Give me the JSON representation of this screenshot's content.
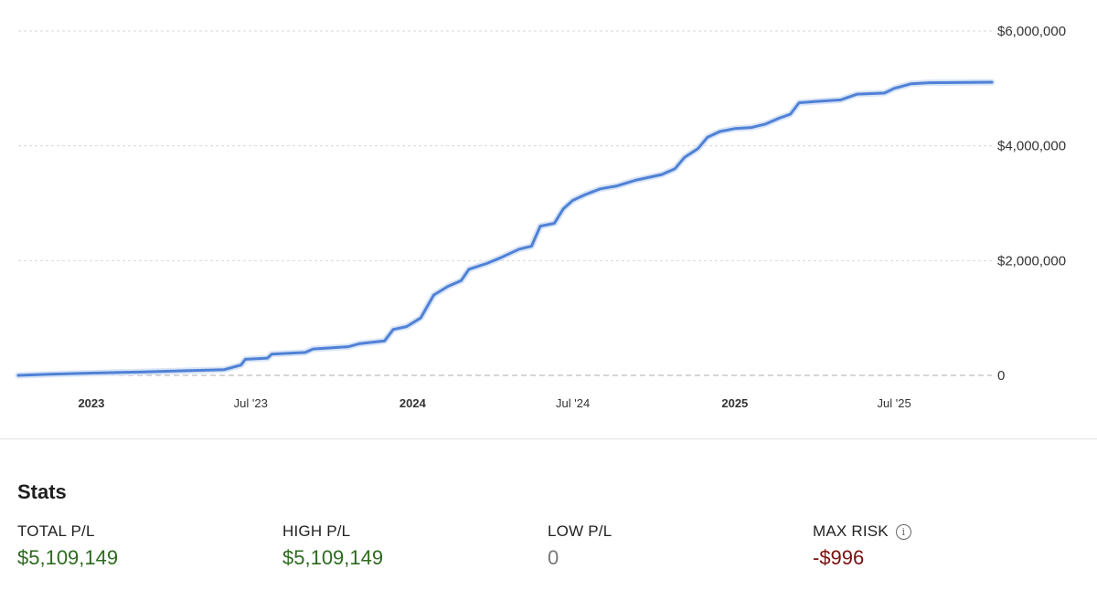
{
  "chart_data": {
    "type": "line",
    "title": "",
    "xlabel": "",
    "ylabel": "",
    "y_axis_position": "right",
    "grid": true,
    "ylim": [
      0,
      6000000
    ],
    "y_ticks": [
      {
        "value": 6000000,
        "label": "$6,000,000"
      },
      {
        "value": 4000000,
        "label": "$4,000,000"
      },
      {
        "value": 2000000,
        "label": "$2,000,000"
      },
      {
        "value": 0,
        "label": "0"
      }
    ],
    "x_range": [
      "2022-10-10",
      "2025-10-20"
    ],
    "x_ticks": [
      {
        "date": "2023-01-01",
        "label": "2023",
        "major": true
      },
      {
        "date": "2023-07-01",
        "label": "Jul '23",
        "major": false
      },
      {
        "date": "2024-01-01",
        "label": "2024",
        "major": true
      },
      {
        "date": "2024-07-01",
        "label": "Jul '24",
        "major": false
      },
      {
        "date": "2025-01-01",
        "label": "2025",
        "major": true
      },
      {
        "date": "2025-07-01",
        "label": "Jul '25",
        "major": false
      }
    ],
    "series": [
      {
        "color": "#4f81d6",
        "points": [
          [
            "2022-10-10",
            0
          ],
          [
            "2022-11-15",
            20000
          ],
          [
            "2023-01-01",
            40000
          ],
          [
            "2023-03-01",
            60000
          ],
          [
            "2023-04-15",
            80000
          ],
          [
            "2023-06-01",
            100000
          ],
          [
            "2023-06-20",
            180000
          ],
          [
            "2023-06-25",
            280000
          ],
          [
            "2023-07-20",
            300000
          ],
          [
            "2023-07-25",
            370000
          ],
          [
            "2023-09-01",
            400000
          ],
          [
            "2023-09-10",
            460000
          ],
          [
            "2023-10-20",
            500000
          ],
          [
            "2023-11-01",
            550000
          ],
          [
            "2023-11-30",
            600000
          ],
          [
            "2023-12-10",
            800000
          ],
          [
            "2023-12-25",
            850000
          ],
          [
            "2024-01-10",
            1000000
          ],
          [
            "2024-01-25",
            1400000
          ],
          [
            "2024-02-10",
            1550000
          ],
          [
            "2024-02-25",
            1650000
          ],
          [
            "2024-03-05",
            1850000
          ],
          [
            "2024-03-25",
            1950000
          ],
          [
            "2024-04-10",
            2050000
          ],
          [
            "2024-05-01",
            2200000
          ],
          [
            "2024-05-15",
            2250000
          ],
          [
            "2024-05-25",
            2600000
          ],
          [
            "2024-06-10",
            2650000
          ],
          [
            "2024-06-20",
            2900000
          ],
          [
            "2024-07-01",
            3050000
          ],
          [
            "2024-07-15",
            3150000
          ],
          [
            "2024-08-01",
            3250000
          ],
          [
            "2024-08-20",
            3300000
          ],
          [
            "2024-09-10",
            3400000
          ],
          [
            "2024-10-10",
            3500000
          ],
          [
            "2024-10-25",
            3600000
          ],
          [
            "2024-11-05",
            3800000
          ],
          [
            "2024-11-20",
            3950000
          ],
          [
            "2024-12-01",
            4150000
          ],
          [
            "2024-12-15",
            4250000
          ],
          [
            "2025-01-01",
            4300000
          ],
          [
            "2025-01-20",
            4320000
          ],
          [
            "2025-02-05",
            4380000
          ],
          [
            "2025-02-20",
            4480000
          ],
          [
            "2025-03-05",
            4550000
          ],
          [
            "2025-03-15",
            4750000
          ],
          [
            "2025-04-01",
            4770000
          ],
          [
            "2025-05-01",
            4800000
          ],
          [
            "2025-05-20",
            4900000
          ],
          [
            "2025-06-20",
            4920000
          ],
          [
            "2025-07-01",
            5000000
          ],
          [
            "2025-07-20",
            5080000
          ],
          [
            "2025-08-10",
            5100000
          ],
          [
            "2025-10-20",
            5109149
          ]
        ]
      }
    ]
  },
  "stats": {
    "title": "Stats",
    "items": [
      {
        "label": "TOTAL P/L",
        "value": "$5,109,149",
        "tone": "positive"
      },
      {
        "label": "HIGH P/L",
        "value": "$5,109,149",
        "tone": "positive"
      },
      {
        "label": "LOW P/L",
        "value": "0",
        "tone": "neutral"
      },
      {
        "label": "MAX RISK",
        "value": "-$996",
        "tone": "negative",
        "icon": "info-icon"
      }
    ]
  }
}
